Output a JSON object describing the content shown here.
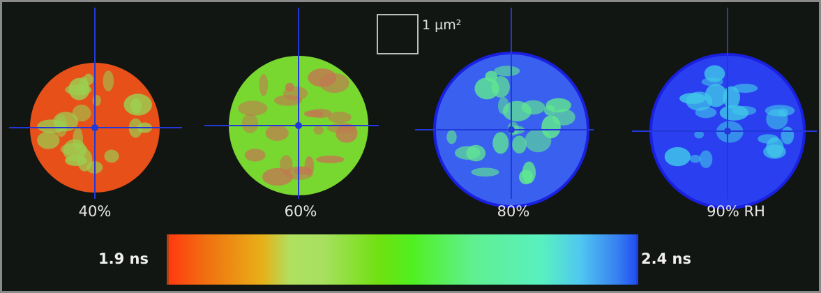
{
  "scale_bar": {
    "label": "1 µm²"
  },
  "particles": [
    {
      "label": "40%",
      "base_color": "#e8501a",
      "accent_color": "#9ad050"
    },
    {
      "label": "60%",
      "base_color": "#78d830",
      "accent_color": "#c07a50"
    },
    {
      "label": "80%",
      "base_color": "#3a60f0",
      "accent_color": "#60e890"
    },
    {
      "label": "90% RH",
      "base_color": "#2a40f0",
      "accent_color": "#40c8e8"
    }
  ],
  "colorbar": {
    "min_label": "1.9 ns",
    "max_label": "2.4 ns",
    "colors": [
      "#ff3a10",
      "#e8b018",
      "#a8e060",
      "#50f020",
      "#58f0c0",
      "#2050f0"
    ]
  },
  "crosshair_color": "#2238d8"
}
